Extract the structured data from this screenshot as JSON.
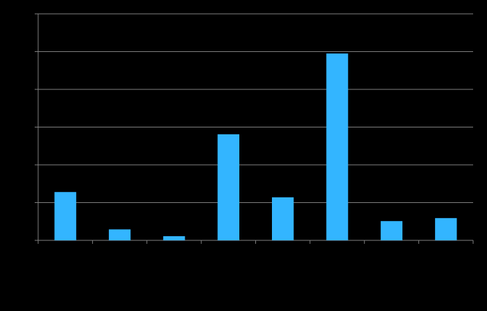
{
  "chart_data": {
    "type": "bar",
    "categories": [
      null,
      null,
      null,
      null,
      null,
      null,
      null,
      null
    ],
    "values": [
      1.28,
      0.29,
      0.11,
      2.81,
      1.14,
      4.95,
      0.51,
      0.59
    ],
    "color": "#33b5ff",
    "ylim": [
      0,
      6
    ],
    "yticks": [
      0,
      1,
      2,
      3,
      4,
      5,
      6
    ],
    "grid": true
  }
}
